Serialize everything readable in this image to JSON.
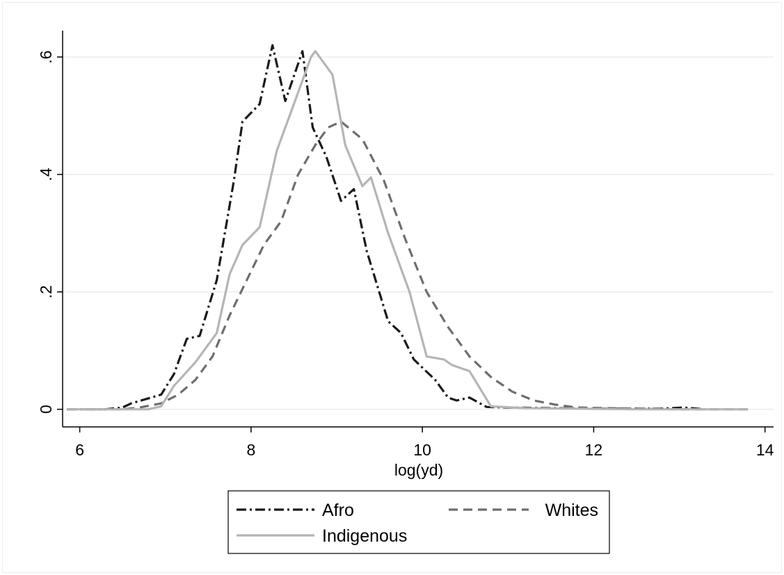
{
  "chart_data": {
    "type": "line",
    "title": "",
    "xlabel": "log(yd)",
    "ylabel": "",
    "xlim": [
      5.8,
      14.1
    ],
    "ylim": [
      -0.03,
      0.645
    ],
    "x_ticks": [
      6,
      8,
      10,
      12,
      14
    ],
    "x_tick_labels": [
      "6",
      "8",
      "10",
      "12",
      "14"
    ],
    "y_ticks": [
      0,
      0.2,
      0.4,
      0.6
    ],
    "y_tick_labels": [
      "0",
      ".2",
      ".4",
      ".6"
    ],
    "grid": "horizontal",
    "legend_position": "bottom",
    "series": [
      {
        "name": "Afro",
        "color": "#1a1a1a",
        "dash": "dash-dot",
        "points": [
          [
            5.85,
            0
          ],
          [
            6.3,
            0
          ],
          [
            6.5,
            0.003
          ],
          [
            6.6,
            0.01
          ],
          [
            6.95,
            0.025
          ],
          [
            7.1,
            0.06
          ],
          [
            7.25,
            0.12
          ],
          [
            7.4,
            0.125
          ],
          [
            7.6,
            0.22
          ],
          [
            7.8,
            0.39
          ],
          [
            7.9,
            0.49
          ],
          [
            8.1,
            0.52
          ],
          [
            8.25,
            0.62
          ],
          [
            8.4,
            0.525
          ],
          [
            8.6,
            0.61
          ],
          [
            8.72,
            0.48
          ],
          [
            8.88,
            0.43
          ],
          [
            9.05,
            0.355
          ],
          [
            9.2,
            0.375
          ],
          [
            9.35,
            0.27
          ],
          [
            9.6,
            0.15
          ],
          [
            9.75,
            0.13
          ],
          [
            9.9,
            0.085
          ],
          [
            10.15,
            0.05
          ],
          [
            10.3,
            0.02
          ],
          [
            10.4,
            0.015
          ],
          [
            10.55,
            0.02
          ],
          [
            10.75,
            0.004
          ],
          [
            11.0,
            0.003
          ],
          [
            11.5,
            0.002
          ],
          [
            12.0,
            0.001
          ],
          [
            12.8,
            0.001
          ],
          [
            13.05,
            0.003
          ],
          [
            13.3,
            0
          ]
        ]
      },
      {
        "name": "Whites",
        "color": "#6e6e6e",
        "dash": "dashed",
        "points": [
          [
            5.85,
            0
          ],
          [
            6.5,
            0
          ],
          [
            6.7,
            0.003
          ],
          [
            6.95,
            0.01
          ],
          [
            7.15,
            0.025
          ],
          [
            7.35,
            0.05
          ],
          [
            7.55,
            0.09
          ],
          [
            7.75,
            0.16
          ],
          [
            7.95,
            0.22
          ],
          [
            8.15,
            0.28
          ],
          [
            8.35,
            0.32
          ],
          [
            8.55,
            0.4
          ],
          [
            8.75,
            0.45
          ],
          [
            8.9,
            0.48
          ],
          [
            9.05,
            0.49
          ],
          [
            9.3,
            0.46
          ],
          [
            9.55,
            0.39
          ],
          [
            9.8,
            0.29
          ],
          [
            10.05,
            0.2
          ],
          [
            10.3,
            0.14
          ],
          [
            10.55,
            0.09
          ],
          [
            10.8,
            0.055
          ],
          [
            11.05,
            0.03
          ],
          [
            11.3,
            0.015
          ],
          [
            11.55,
            0.008
          ],
          [
            11.8,
            0.003
          ],
          [
            12.5,
            0.001
          ],
          [
            13.0,
            0
          ],
          [
            13.8,
            0
          ]
        ]
      },
      {
        "name": "Indigenous",
        "color": "#b5b5b5",
        "dash": "solid",
        "points": [
          [
            5.85,
            0
          ],
          [
            6.8,
            0.0
          ],
          [
            6.95,
            0.005
          ],
          [
            7.1,
            0.04
          ],
          [
            7.35,
            0.08
          ],
          [
            7.6,
            0.13
          ],
          [
            7.75,
            0.23
          ],
          [
            7.9,
            0.28
          ],
          [
            8.1,
            0.31
          ],
          [
            8.3,
            0.44
          ],
          [
            8.5,
            0.52
          ],
          [
            8.7,
            0.6
          ],
          [
            8.75,
            0.61
          ],
          [
            8.95,
            0.57
          ],
          [
            9.1,
            0.45
          ],
          [
            9.3,
            0.38
          ],
          [
            9.4,
            0.395
          ],
          [
            9.6,
            0.3
          ],
          [
            9.85,
            0.2
          ],
          [
            10.05,
            0.09
          ],
          [
            10.25,
            0.085
          ],
          [
            10.35,
            0.075
          ],
          [
            10.55,
            0.065
          ],
          [
            10.8,
            0.005
          ],
          [
            11.2,
            0.002
          ],
          [
            11.8,
            0.001
          ],
          [
            12.5,
            0
          ],
          [
            13.8,
            0
          ]
        ]
      }
    ]
  }
}
